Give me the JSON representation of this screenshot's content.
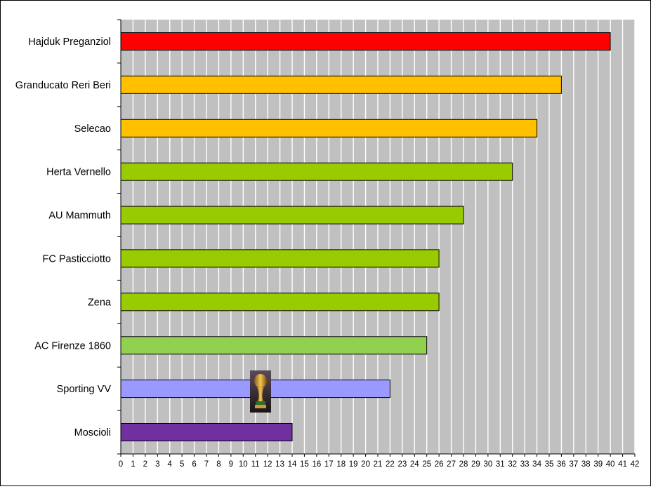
{
  "chart_data": {
    "type": "bar",
    "orientation": "horizontal",
    "categories": [
      "Hajduk Preganziol",
      "Granducato Reri Beri",
      "Selecao",
      "Herta Vernello",
      "AU Mammuth",
      "FC Pasticciotto",
      "Zena",
      "AC Firenze 1860",
      "Sporting VV",
      "Moscioli"
    ],
    "values": [
      40,
      36,
      34,
      32,
      28,
      26,
      26,
      25,
      22,
      14
    ],
    "bar_colors": [
      "#ff0000",
      "#ffc000",
      "#ffc000",
      "#99cc00",
      "#99cc00",
      "#99cc00",
      "#99cc00",
      "#92d050",
      "#9999ff",
      "#7030a0"
    ],
    "xlim": [
      0,
      42
    ],
    "x_ticks": [
      "0",
      "1",
      "2",
      "3",
      "4",
      "5",
      "6",
      "7",
      "8",
      "9",
      "10",
      "11",
      "12",
      "13",
      "14",
      "15",
      "16",
      "17",
      "18",
      "19",
      "20",
      "21",
      "22",
      "23",
      "24",
      "25",
      "26",
      "27",
      "28",
      "29",
      "30",
      "31",
      "32",
      "33",
      "34",
      "35",
      "36",
      "37",
      "38",
      "39",
      "40",
      "41",
      "42"
    ],
    "plot_background": "#c0c0c0",
    "grid": true,
    "grid_color": "#ffffff",
    "title": "",
    "xlabel": "",
    "ylabel": "",
    "trophy_icon": "world-cup-trophy-icon"
  }
}
